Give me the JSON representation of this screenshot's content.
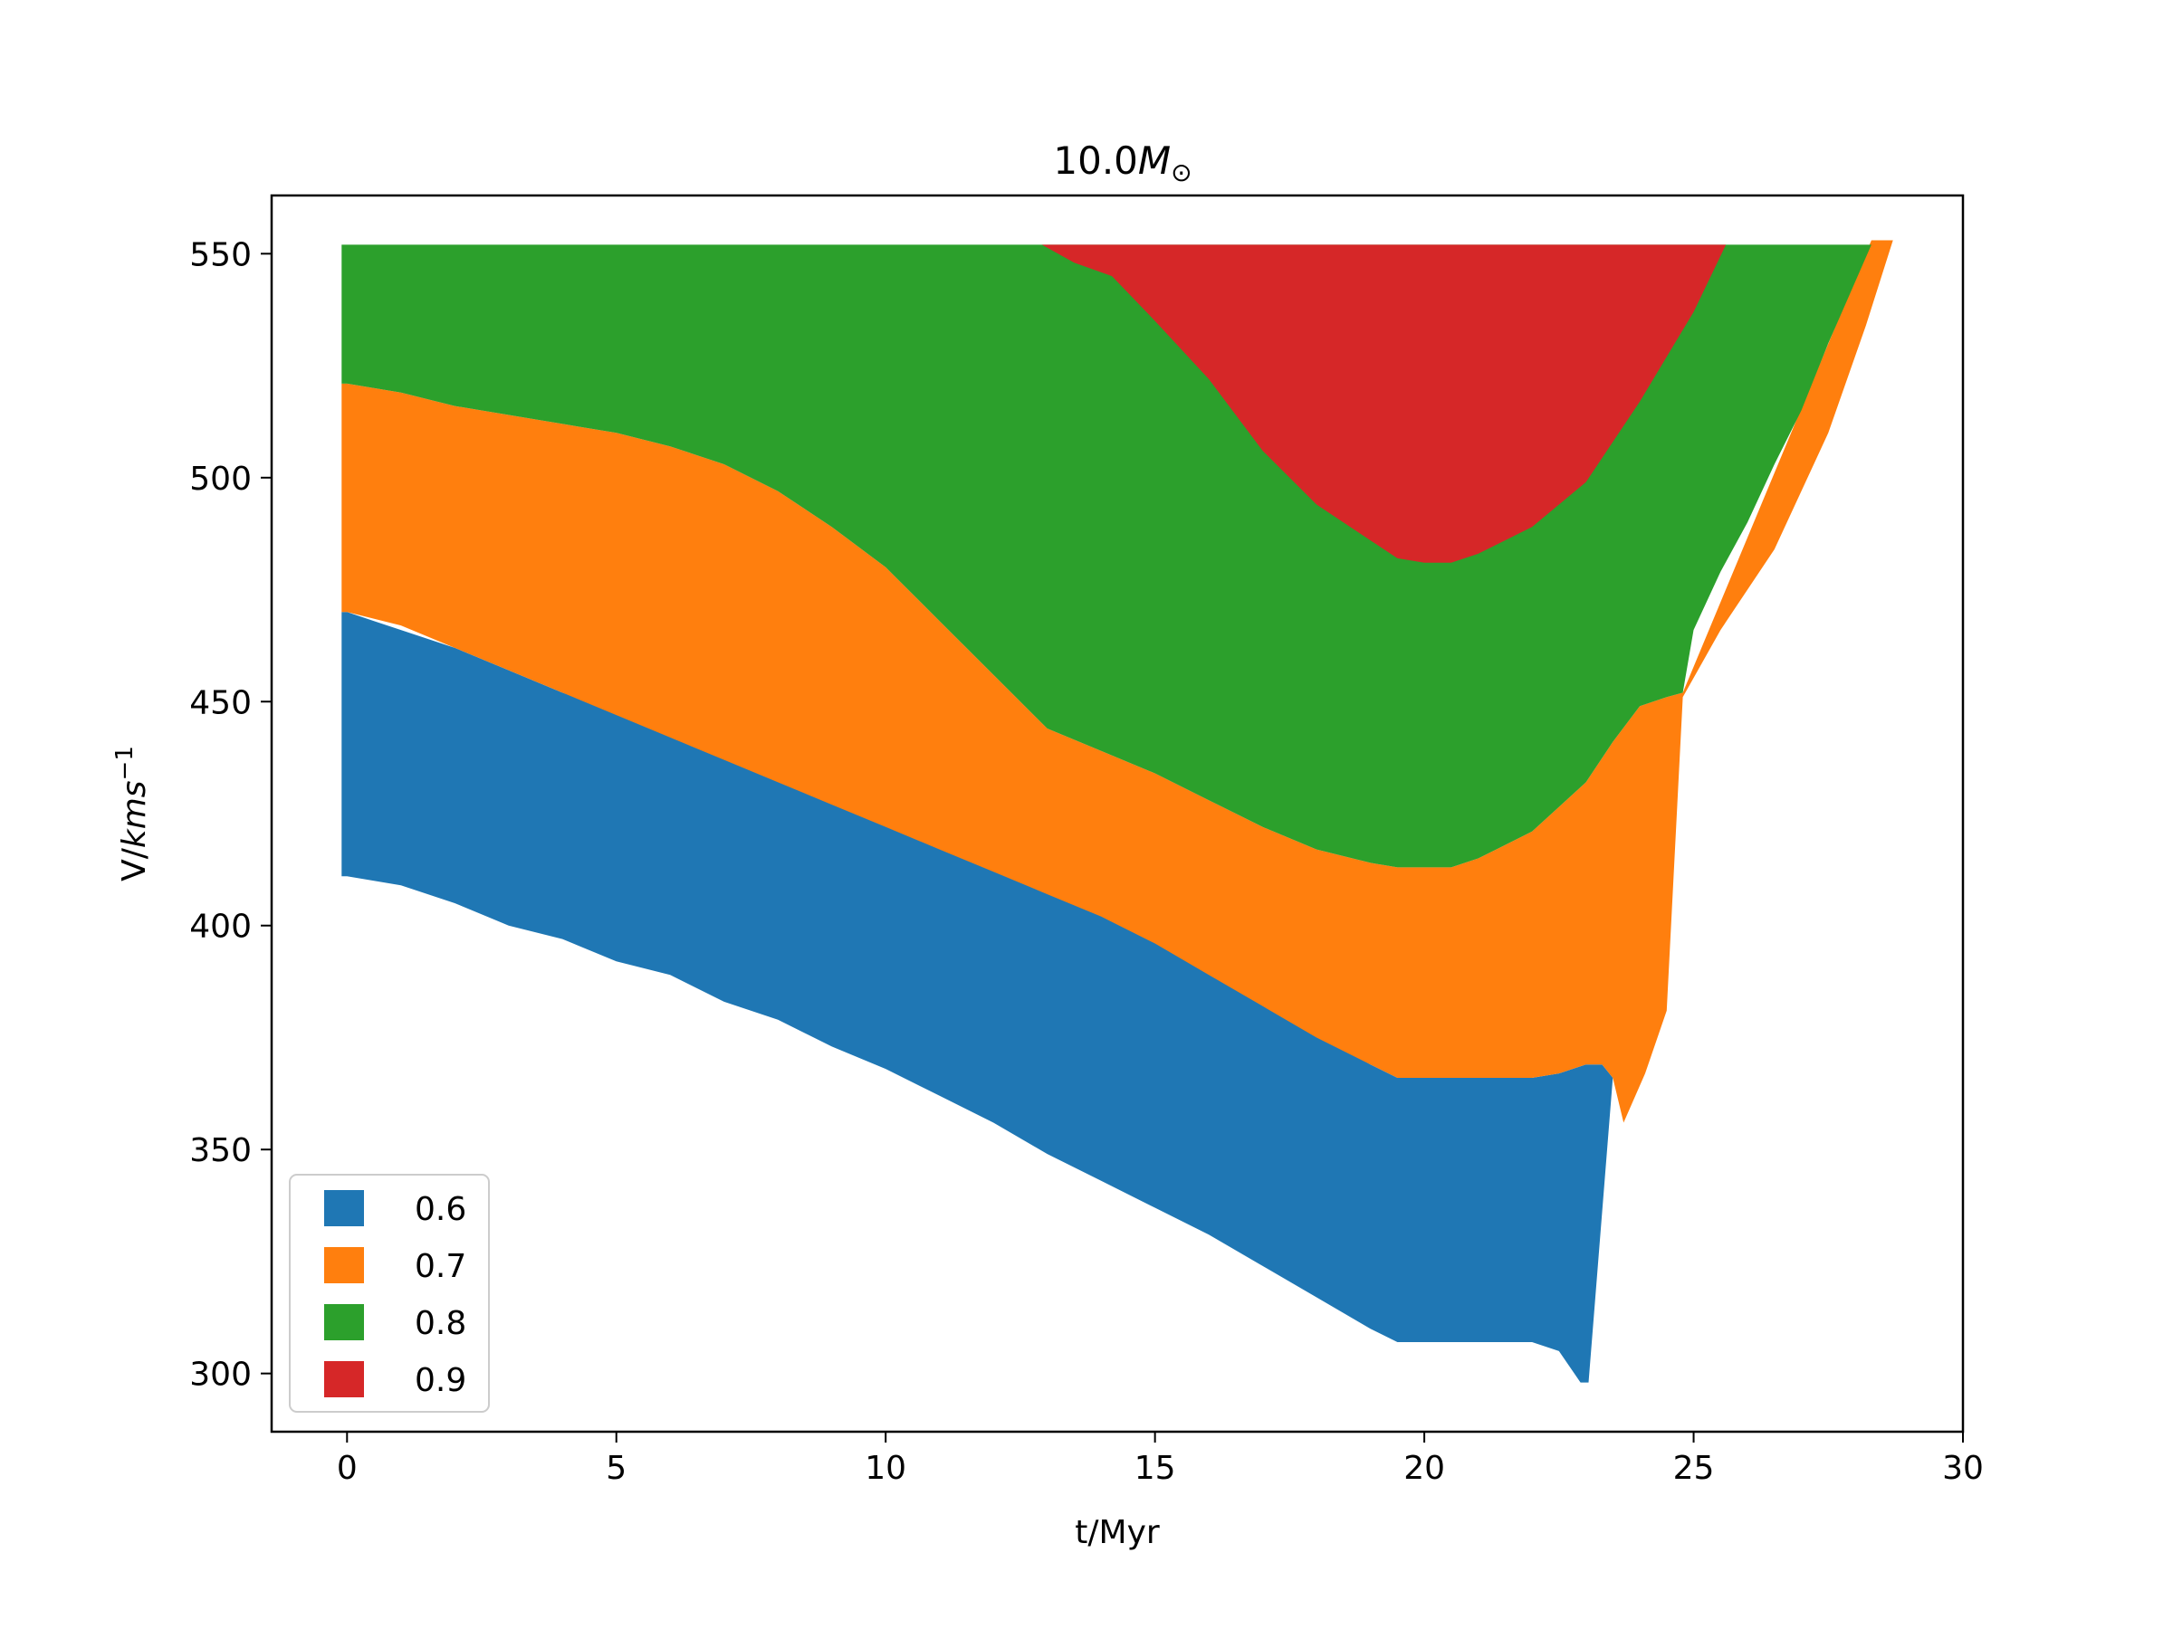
{
  "chart_data": {
    "type": "area",
    "title_main": "10.0",
    "title_sub_symbol": "M",
    "title_sub": "⊙",
    "xlabel": "t/Myr",
    "ylabel_main": "V/",
    "ylabel_italic": "kms",
    "ylabel_sup": "−1",
    "xlim": [
      -1.4,
      30
    ],
    "ylim": [
      287,
      563
    ],
    "xticks": [
      0,
      5,
      10,
      15,
      20,
      25,
      30
    ],
    "yticks": [
      300,
      350,
      400,
      450,
      500,
      550
    ],
    "grid": false,
    "legend_position": "lower-left",
    "series": [
      {
        "name": "0.6",
        "color": "#1f77b4",
        "upper": [
          [
            -0.1,
            470
          ],
          [
            0,
            470
          ],
          [
            0.5,
            468
          ],
          [
            1,
            466
          ],
          [
            2,
            462
          ],
          [
            3,
            457
          ],
          [
            4,
            452
          ],
          [
            5,
            448
          ],
          [
            6,
            443
          ],
          [
            7,
            438
          ],
          [
            8,
            433
          ],
          [
            9,
            428
          ],
          [
            10,
            424
          ],
          [
            11,
            419
          ],
          [
            12,
            414
          ],
          [
            13,
            409
          ],
          [
            14,
            403
          ],
          [
            15,
            397
          ],
          [
            16,
            391
          ],
          [
            17,
            384
          ],
          [
            18,
            376
          ],
          [
            19,
            369
          ],
          [
            19.5,
            366
          ],
          [
            20,
            366
          ],
          [
            22,
            366
          ],
          [
            22.5,
            367
          ],
          [
            23,
            369
          ],
          [
            23.3,
            369
          ],
          [
            23.5,
            366
          ]
        ],
        "lower": [
          [
            -0.1,
            411
          ],
          [
            0,
            411
          ],
          [
            1,
            409
          ],
          [
            2,
            405
          ],
          [
            3,
            400
          ],
          [
            4,
            397
          ],
          [
            5,
            392
          ],
          [
            6,
            389
          ],
          [
            7,
            383
          ],
          [
            8,
            379
          ],
          [
            9,
            373
          ],
          [
            10,
            368
          ],
          [
            11,
            362
          ],
          [
            12,
            356
          ],
          [
            13,
            349
          ],
          [
            14,
            343
          ],
          [
            15,
            337
          ],
          [
            16,
            331
          ],
          [
            17,
            324
          ],
          [
            18,
            317
          ],
          [
            19,
            310
          ],
          [
            19.5,
            307
          ],
          [
            20,
            307
          ],
          [
            22,
            307
          ],
          [
            22.5,
            305
          ],
          [
            22.9,
            298
          ],
          [
            23.05,
            298
          ]
        ]
      },
      {
        "name": "0.7",
        "color": "#ff7f0e",
        "upper": [
          [
            -0.1,
            521
          ],
          [
            0,
            521
          ],
          [
            1,
            519
          ],
          [
            2,
            516
          ],
          [
            3,
            514
          ],
          [
            4,
            512
          ],
          [
            5,
            510
          ],
          [
            6,
            507
          ],
          [
            7,
            503
          ],
          [
            8,
            497
          ],
          [
            9,
            489
          ],
          [
            10,
            480
          ],
          [
            11,
            468
          ],
          [
            12,
            456
          ],
          [
            13,
            444
          ],
          [
            14,
            439
          ],
          [
            15,
            434
          ],
          [
            16,
            428
          ],
          [
            17,
            422
          ],
          [
            18,
            417
          ],
          [
            19,
            414
          ],
          [
            19.5,
            413
          ],
          [
            20,
            413
          ],
          [
            20.5,
            413
          ],
          [
            21,
            415
          ],
          [
            22,
            421
          ],
          [
            23,
            432
          ],
          [
            23.5,
            441
          ],
          [
            24,
            449
          ],
          [
            24.5,
            451
          ],
          [
            24.8,
            452
          ]
        ],
        "lower": [
          [
            -0.1,
            470
          ],
          [
            0,
            470
          ],
          [
            1,
            467
          ],
          [
            2,
            462
          ],
          [
            3,
            457
          ],
          [
            4,
            452
          ],
          [
            5,
            447
          ],
          [
            6,
            442
          ],
          [
            7,
            437
          ],
          [
            8,
            432
          ],
          [
            9,
            427
          ],
          [
            10,
            422
          ],
          [
            11,
            417
          ],
          [
            12,
            412
          ],
          [
            13,
            407
          ],
          [
            14,
            402
          ],
          [
            15,
            396
          ],
          [
            16,
            389
          ],
          [
            17,
            382
          ],
          [
            18,
            375
          ],
          [
            19,
            369
          ],
          [
            19.5,
            366
          ],
          [
            20,
            366
          ],
          [
            22,
            366
          ],
          [
            22.5,
            367
          ],
          [
            23,
            369
          ],
          [
            23.3,
            369
          ],
          [
            23.5,
            366
          ],
          [
            23.7,
            356
          ],
          [
            24.1,
            367
          ],
          [
            24.5,
            381
          ],
          [
            24.8,
            451
          ],
          [
            25.5,
            466
          ],
          [
            26.5,
            484
          ],
          [
            27.5,
            510
          ],
          [
            28.2,
            534
          ],
          [
            28.7,
            553
          ],
          [
            28.3,
            553
          ]
        ]
      },
      {
        "name": "0.8",
        "color": "#2ca02c",
        "upper": [
          [
            -0.1,
            552
          ],
          [
            28.3,
            552
          ],
          [
            27.5,
            530
          ],
          [
            27,
            515
          ],
          [
            26.5,
            503
          ],
          [
            26,
            490
          ],
          [
            25.5,
            479
          ],
          [
            25,
            466
          ],
          [
            24.8,
            452
          ]
        ],
        "lower": [
          [
            -0.1,
            521
          ],
          [
            0,
            521
          ],
          [
            1,
            519
          ],
          [
            2,
            516
          ],
          [
            3,
            514
          ],
          [
            4,
            512
          ],
          [
            5,
            510
          ],
          [
            6,
            507
          ],
          [
            7,
            503
          ],
          [
            8,
            497
          ],
          [
            9,
            489
          ],
          [
            10,
            480
          ],
          [
            11,
            468
          ],
          [
            12,
            456
          ],
          [
            13,
            444
          ],
          [
            14,
            439
          ],
          [
            15,
            434
          ],
          [
            16,
            428
          ],
          [
            17,
            422
          ],
          [
            18,
            417
          ],
          [
            19,
            414
          ],
          [
            19.5,
            413
          ],
          [
            20,
            413
          ],
          [
            20.5,
            413
          ],
          [
            21,
            415
          ],
          [
            22,
            421
          ],
          [
            23,
            432
          ],
          [
            23.5,
            441
          ],
          [
            24,
            449
          ],
          [
            24.5,
            451
          ],
          [
            24.8,
            452
          ]
        ]
      },
      {
        "name": "0.9",
        "color": "#d62728",
        "upper": [
          [
            12.9,
            552
          ],
          [
            25.6,
            552
          ]
        ],
        "lower": [
          [
            12.9,
            552
          ],
          [
            13.5,
            548
          ],
          [
            14.2,
            545
          ],
          [
            15,
            535
          ],
          [
            16,
            522
          ],
          [
            17,
            506
          ],
          [
            18,
            494
          ],
          [
            19,
            486
          ],
          [
            19.5,
            482
          ],
          [
            20,
            481
          ],
          [
            20.5,
            481
          ],
          [
            21,
            483
          ],
          [
            22,
            489
          ],
          [
            23,
            499
          ],
          [
            24,
            517
          ],
          [
            25,
            537
          ],
          [
            25.6,
            552
          ]
        ]
      }
    ]
  }
}
